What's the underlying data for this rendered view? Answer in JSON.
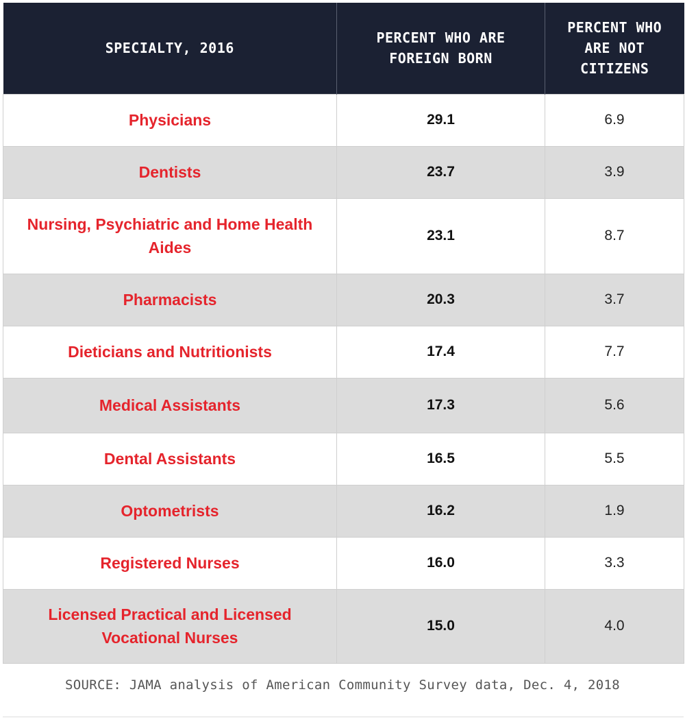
{
  "headers": {
    "specialty": "SPECIALTY, 2016",
    "foreign_born": "PERCENT WHO ARE FOREIGN BORN",
    "not_citizens": "PERCENT WHO ARE NOT CITIZENS"
  },
  "rows": [
    {
      "specialty": "Physicians",
      "foreign_born": "29.1",
      "not_citizens": "6.9"
    },
    {
      "specialty": "Dentists",
      "foreign_born": "23.7",
      "not_citizens": "3.9"
    },
    {
      "specialty": "Nursing, Psychiatric and Home Health Aides",
      "foreign_born": "23.1",
      "not_citizens": "8.7"
    },
    {
      "specialty": "Pharmacists",
      "foreign_born": "20.3",
      "not_citizens": "3.7"
    },
    {
      "specialty": "Dieticians and Nutritionists",
      "foreign_born": "17.4",
      "not_citizens": "7.7"
    },
    {
      "specialty": "Medical Assistants",
      "foreign_born": "17.3",
      "not_citizens": "5.6"
    },
    {
      "specialty": "Dental Assistants",
      "foreign_born": "16.5",
      "not_citizens": "5.5"
    },
    {
      "specialty": "Optometrists",
      "foreign_born": "16.2",
      "not_citizens": "1.9"
    },
    {
      "specialty": "Registered Nurses",
      "foreign_born": "16.0",
      "not_citizens": "3.3"
    },
    {
      "specialty": "Licensed Practical and Licensed Vocational Nurses",
      "foreign_born": "15.0",
      "not_citizens": "4.0"
    }
  ],
  "source": "SOURCE: JAMA analysis of American Community Survey data, Dec. 4, 2018",
  "colors": {
    "header_bg": "#1b2133",
    "specialty_text": "#e5242c",
    "alt_row_bg": "#dcdcdc"
  }
}
